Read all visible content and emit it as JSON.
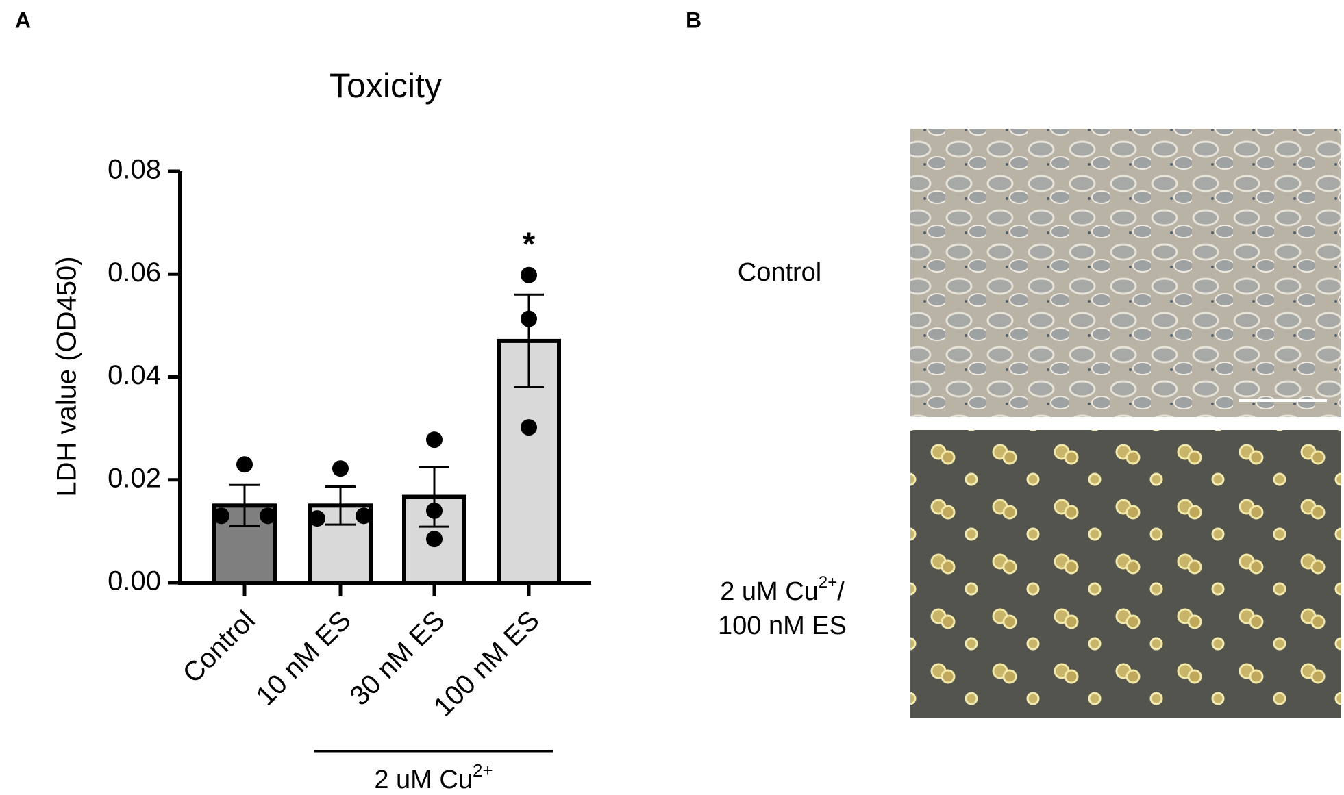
{
  "chart_data": {
    "type": "bar",
    "panel_label": "A",
    "title": "Toxicity",
    "y_label": "LDH value (OD450)",
    "categories": [
      "Control",
      "10 nM ES",
      "30 nM ES",
      "100 nM ES"
    ],
    "values": [
      0.015,
      0.015,
      0.0167,
      0.047
    ],
    "errors": [
      0.004,
      0.0037,
      0.0058,
      0.009
    ],
    "points": [
      [
        0.023,
        0.013,
        0.013
      ],
      [
        0.0222,
        0.0125,
        0.013
      ],
      [
        0.0278,
        0.014,
        0.0085
      ],
      [
        0.0598,
        0.0513,
        0.0302
      ]
    ],
    "colors": [
      "#7f7f7f",
      "#d9d9d9",
      "#d9d9d9",
      "#d9d9d9"
    ],
    "ylim": [
      0,
      0.08
    ],
    "yticks": [
      {
        "value": 0,
        "label": "0.00"
      },
      0.02,
      0.04,
      0.06,
      0.08
    ],
    "annotations": [
      {
        "category": 3,
        "text": "*"
      }
    ],
    "group_label": {
      "text": "2 uM Cu",
      "superscript": "2+"
    }
  },
  "panel_b": {
    "panel_label": "B",
    "rows": [
      {
        "label": "Control"
      },
      {
        "text": "2 uM Cu",
        "superscript": "2+",
        "suffix": "/",
        "line2": "100 nM ES"
      }
    ]
  }
}
